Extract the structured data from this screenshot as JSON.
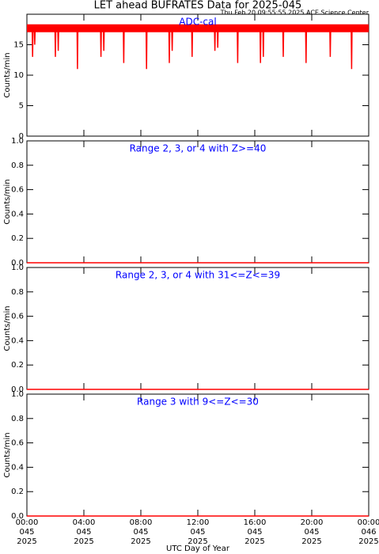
{
  "chart_data": [
    {
      "type": "line",
      "title": "LET ahead BUFRATES Data for 2025-045",
      "subtitle": "Thu Feb 20 09:55:55 2025 ACE Science Center",
      "annotation": "ADC-cal",
      "ylabel": "Counts/min",
      "xlim": [
        0,
        24
      ],
      "xticks": [
        0,
        4,
        8,
        12,
        16,
        20,
        24
      ],
      "ylim": [
        0,
        20
      ],
      "yticks": [
        0,
        5,
        10,
        15
      ],
      "x": [
        0,
        0.37,
        0.4,
        0.43,
        0.52,
        0.55,
        0.58,
        1.97,
        2.0,
        2.03,
        2.17,
        2.2,
        2.23,
        3.52,
        3.55,
        3.58,
        5.17,
        5.2,
        5.23,
        5.37,
        5.4,
        5.43,
        6.77,
        6.8,
        6.83,
        8.37,
        8.4,
        8.43,
        9.97,
        10.0,
        10.03,
        10.17,
        10.2,
        10.23,
        11.57,
        11.6,
        11.63,
        13.17,
        13.2,
        13.23,
        13.37,
        13.4,
        13.43,
        14.77,
        14.8,
        14.83,
        16.37,
        16.4,
        16.43,
        16.57,
        16.6,
        16.63,
        17.97,
        18.0,
        18.03,
        19.57,
        19.6,
        19.63,
        21.27,
        21.3,
        21.33,
        22.77,
        22.8,
        22.83,
        24
      ],
      "series": [
        {
          "color": "#ff0000",
          "values": [
            17.7,
            17.7,
            13,
            17.7,
            17.7,
            15,
            17.7,
            17.7,
            13,
            17.7,
            17.7,
            14,
            17.7,
            17.7,
            11,
            17.7,
            17.7,
            13,
            17.7,
            17.7,
            14,
            17.7,
            17.7,
            12,
            17.7,
            17.7,
            11,
            17.7,
            17.7,
            12,
            17.7,
            17.7,
            14,
            17.7,
            17.7,
            13,
            17.7,
            17.7,
            14,
            17.7,
            17.7,
            14.5,
            17.7,
            17.7,
            12,
            17.7,
            17.7,
            12,
            17.7,
            17.7,
            13,
            17.7,
            17.7,
            13,
            17.7,
            17.7,
            12,
            17.7,
            17.7,
            13,
            17.7,
            17.7,
            11,
            17.7,
            17.7
          ]
        }
      ]
    },
    {
      "type": "line",
      "annotation": "Range 2, 3, or 4 with Z>=40",
      "ylabel": "Counts/min",
      "xlim": [
        0,
        24
      ],
      "xticks": [
        0,
        4,
        8,
        12,
        16,
        20,
        24
      ],
      "ylim": [
        0,
        1
      ],
      "yticks": [
        {
          "value": 0,
          "label": "0.0"
        },
        {
          "value": 0.2,
          "label": "0.2"
        },
        {
          "value": 0.4,
          "label": "0.4"
        },
        {
          "value": 0.6,
          "label": "0.6"
        },
        {
          "value": 0.8,
          "label": "0.8"
        },
        {
          "value": 1,
          "label": "1.0"
        }
      ],
      "x": [
        0,
        24
      ],
      "series": [
        {
          "color": "#ff0000",
          "values": [
            0,
            0
          ]
        }
      ]
    },
    {
      "type": "line",
      "annotation": "Range 2, 3, or 4 with 31<=Z<=39",
      "ylabel": "Counts/min",
      "xlim": [
        0,
        24
      ],
      "xticks": [
        0,
        4,
        8,
        12,
        16,
        20,
        24
      ],
      "ylim": [
        0,
        1
      ],
      "yticks": [
        {
          "value": 0,
          "label": "0.0"
        },
        {
          "value": 0.2,
          "label": "0.2"
        },
        {
          "value": 0.4,
          "label": "0.4"
        },
        {
          "value": 0.6,
          "label": "0.6"
        },
        {
          "value": 0.8,
          "label": "0.8"
        },
        {
          "value": 1,
          "label": "1.0"
        }
      ],
      "x": [
        0,
        24
      ],
      "series": [
        {
          "color": "#ff0000",
          "values": [
            0,
            0
          ]
        }
      ]
    },
    {
      "type": "line",
      "annotation": "Range 3 with 9<=Z<=30",
      "ylabel": "Counts/min",
      "xlabel": "UTC Day of Year",
      "xlim": [
        0,
        24
      ],
      "xticks": [
        {
          "value": 0,
          "label": "00:00",
          "day": "045",
          "year": "2025"
        },
        {
          "value": 4,
          "label": "04:00",
          "day": "045",
          "year": "2025"
        },
        {
          "value": 8,
          "label": "08:00",
          "day": "045",
          "year": "2025"
        },
        {
          "value": 12,
          "label": "12:00",
          "day": "045",
          "year": "2025"
        },
        {
          "value": 16,
          "label": "16:00",
          "day": "045",
          "year": "2025"
        },
        {
          "value": 20,
          "label": "20:00",
          "day": "045",
          "year": "2025"
        },
        {
          "value": 24,
          "label": "00:00",
          "day": "046",
          "year": "2025"
        }
      ],
      "ylim": [
        0,
        1
      ],
      "yticks": [
        {
          "value": 0,
          "label": "0.0"
        },
        {
          "value": 0.2,
          "label": "0.2"
        },
        {
          "value": 0.4,
          "label": "0.4"
        },
        {
          "value": 0.6,
          "label": "0.6"
        },
        {
          "value": 0.8,
          "label": "0.8"
        },
        {
          "value": 1,
          "label": "1.0"
        }
      ],
      "x": [
        0,
        24
      ],
      "series": [
        {
          "color": "#ff0000",
          "values": [
            0,
            0
          ]
        }
      ]
    }
  ]
}
